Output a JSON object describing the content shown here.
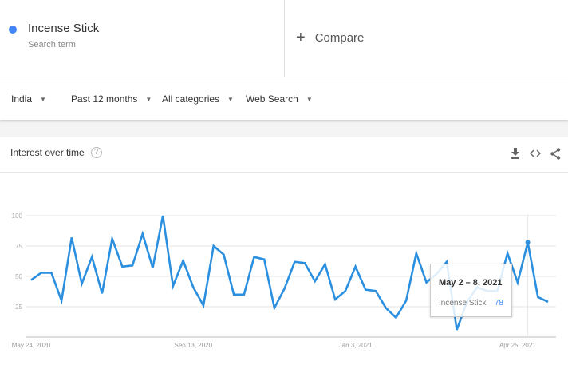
{
  "search_term": {
    "label": "Incense Stick",
    "sublabel": "Search term",
    "color": "#4285f4"
  },
  "compare": {
    "icon": "plus-icon",
    "label": "Compare"
  },
  "filters": [
    {
      "label": "India"
    },
    {
      "label": "Past 12 months"
    },
    {
      "label": "All categories"
    },
    {
      "label": "Web Search"
    }
  ],
  "card": {
    "title": "Interest over time",
    "help_icon": "?",
    "actions": [
      "download-icon",
      "embed-icon",
      "share-icon"
    ]
  },
  "tooltip": {
    "date": "May 2 – 8, 2021",
    "series": "Incense Stick",
    "value": "78"
  },
  "chart_data": {
    "type": "line",
    "title": "",
    "xlabel": "",
    "ylabel": "",
    "ylim": [
      0,
      100
    ],
    "yticks": [
      25,
      50,
      75,
      100
    ],
    "grid": true,
    "x_tick_labels": [
      "May 24, 2020",
      "Sep 13, 2020",
      "Jan 3, 2021",
      "Apr 25, 2021"
    ],
    "x_start": "2020-05-24",
    "x_interval": "weekly",
    "line_color": "#2b8fe0",
    "series": [
      {
        "name": "Incense Stick",
        "values": [
          47,
          53,
          53,
          30,
          82,
          44,
          66,
          36,
          81,
          58,
          59,
          85,
          57,
          100,
          42,
          63,
          41,
          26,
          75,
          68,
          35,
          35,
          66,
          64,
          24,
          40,
          62,
          61,
          46,
          60,
          31,
          38,
          58,
          39,
          38,
          24,
          16,
          30,
          69,
          45,
          52,
          62,
          6,
          29,
          41,
          38,
          38,
          69,
          45,
          78,
          33,
          29
        ]
      }
    ],
    "highlight_index": 49
  }
}
